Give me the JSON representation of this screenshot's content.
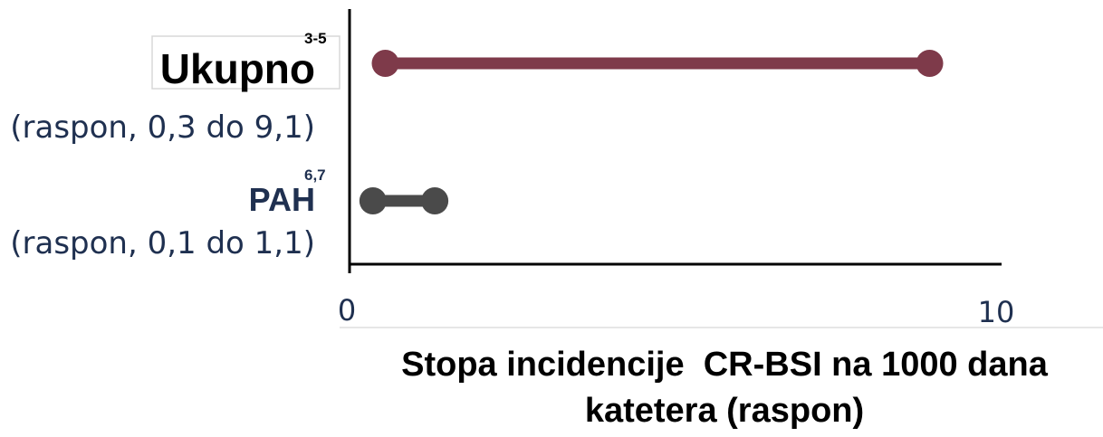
{
  "chart_data": {
    "type": "range",
    "orientation": "horizontal",
    "xlim": [
      0,
      10
    ],
    "x_ticks": [
      "0",
      "10"
    ],
    "xlabel_lines": [
      "Stopa incidencije  CR-BSI na 1000 dana",
      "katetera (raspon)"
    ],
    "grid": false,
    "legend": "none",
    "series": [
      {
        "label": "Ukupno",
        "ref": "3-5",
        "range_text": "(raspon, 0,3 do 9,1)",
        "min": 0.3,
        "max": 9.1,
        "color": "#7e3a4a"
      },
      {
        "label": "PAH",
        "ref": "6,7",
        "range_text": "(raspon, 0,1 do 1,1)",
        "min": 0.1,
        "max": 1.1,
        "color": "#4a4a4a"
      }
    ],
    "label_colors": {
      "primary": "#000000",
      "secondary": "#1f3050"
    }
  }
}
